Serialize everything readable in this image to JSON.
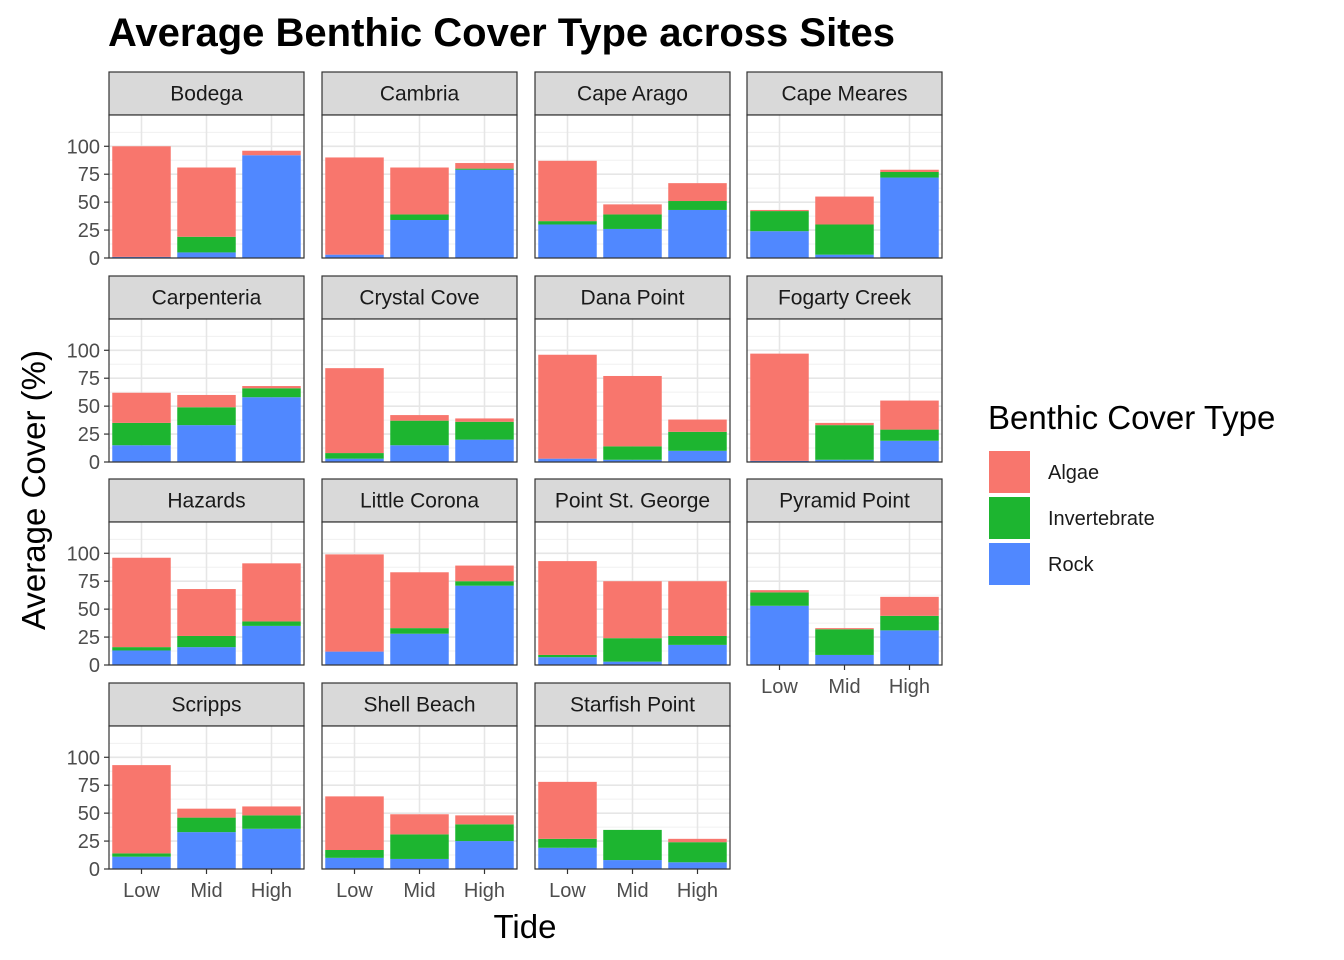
{
  "chart_data": {
    "type": "bar",
    "stacked": true,
    "title": "Average Benthic Cover Type across Sites",
    "xlabel": "Tide",
    "ylabel": "Average Cover (%)",
    "ylim": [
      0,
      128
    ],
    "yticks": [
      0,
      25,
      50,
      75,
      100
    ],
    "categories": [
      "Low",
      "Mid",
      "High"
    ],
    "grid": true,
    "legend": {
      "title": "Benthic Cover Type",
      "position": "right",
      "entries": [
        {
          "name": "Algae",
          "color": "#F8766D"
        },
        {
          "name": "Invertebrate",
          "color": "#1DB530"
        },
        {
          "name": "Rock",
          "color": "#5088FF"
        }
      ]
    },
    "stack_order": [
      "Rock",
      "Invertebrate",
      "Algae"
    ],
    "panels": [
      {
        "site": "Bodega",
        "Rock": [
          1,
          5,
          92
        ],
        "Invertebrate": [
          0,
          14,
          0
        ],
        "Algae": [
          99,
          62,
          4
        ]
      },
      {
        "site": "Cambria",
        "Rock": [
          3,
          34,
          79
        ],
        "Invertebrate": [
          0,
          5,
          1
        ],
        "Algae": [
          87,
          42,
          5
        ]
      },
      {
        "site": "Cape Arago",
        "Rock": [
          30,
          26,
          43
        ],
        "Invertebrate": [
          3,
          13,
          8
        ],
        "Algae": [
          54,
          9,
          16
        ]
      },
      {
        "site": "Cape Meares",
        "Rock": [
          24,
          3,
          72
        ],
        "Invertebrate": [
          18,
          27,
          5
        ],
        "Algae": [
          1,
          25,
          2
        ]
      },
      {
        "site": "Carpenteria",
        "Rock": [
          15,
          33,
          58
        ],
        "Invertebrate": [
          20,
          16,
          8
        ],
        "Algae": [
          27,
          11,
          2
        ]
      },
      {
        "site": "Crystal Cove",
        "Rock": [
          3,
          15,
          20
        ],
        "Invertebrate": [
          5,
          22,
          16
        ],
        "Algae": [
          76,
          5,
          3
        ]
      },
      {
        "site": "Dana Point",
        "Rock": [
          3,
          2,
          10
        ],
        "Invertebrate": [
          0,
          12,
          17
        ],
        "Algae": [
          93,
          63,
          11
        ]
      },
      {
        "site": "Fogarty Creek",
        "Rock": [
          1,
          2,
          19
        ],
        "Invertebrate": [
          0,
          31,
          10
        ],
        "Algae": [
          96,
          2,
          26
        ]
      },
      {
        "site": "Hazards",
        "Rock": [
          13,
          16,
          35
        ],
        "Invertebrate": [
          3,
          10,
          4
        ],
        "Algae": [
          80,
          42,
          52
        ]
      },
      {
        "site": "Little Corona",
        "Rock": [
          12,
          28,
          71
        ],
        "Invertebrate": [
          0,
          5,
          4
        ],
        "Algae": [
          87,
          50,
          14
        ]
      },
      {
        "site": "Point St. George",
        "Rock": [
          7,
          3,
          18
        ],
        "Invertebrate": [
          2,
          21,
          8
        ],
        "Algae": [
          84,
          51,
          49
        ]
      },
      {
        "site": "Pyramid Point",
        "Rock": [
          53,
          9,
          31
        ],
        "Invertebrate": [
          12,
          23,
          13
        ],
        "Algae": [
          2,
          1,
          17
        ]
      },
      {
        "site": "Scripps",
        "Rock": [
          11,
          33,
          36
        ],
        "Invertebrate": [
          3,
          13,
          12
        ],
        "Algae": [
          79,
          8,
          8
        ]
      },
      {
        "site": "Shell Beach",
        "Rock": [
          10,
          9,
          25
        ],
        "Invertebrate": [
          7,
          22,
          15
        ],
        "Algae": [
          48,
          18,
          8
        ]
      },
      {
        "site": "Starfish Point",
        "Rock": [
          19,
          8,
          6
        ],
        "Invertebrate": [
          8,
          27,
          18
        ],
        "Algae": [
          51,
          0,
          3
        ]
      }
    ]
  }
}
